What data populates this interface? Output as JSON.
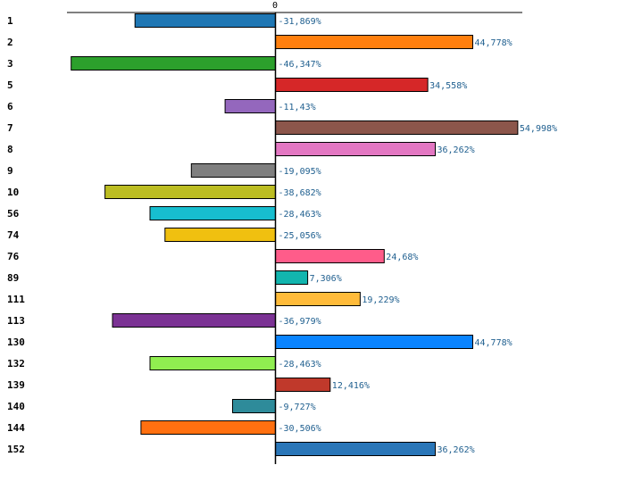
{
  "chart_data": {
    "type": "bar",
    "orientation": "horizontal",
    "title": "",
    "xlabel": "",
    "ylabel": "",
    "x_tick_labels": [
      "0"
    ],
    "categories": [
      "1",
      "2",
      "3",
      "5",
      "6",
      "7",
      "8",
      "9",
      "10",
      "56",
      "74",
      "76",
      "89",
      "111",
      "113",
      "130",
      "132",
      "139",
      "140",
      "144",
      "152"
    ],
    "values": [
      -31.869,
      44.778,
      -46.347,
      34.558,
      -11.43,
      54.998,
      36.262,
      -19.095,
      -38.682,
      -28.463,
      -25.056,
      24.68,
      7.306,
      19.229,
      -36.979,
      44.778,
      -28.463,
      12.416,
      -9.727,
      -30.506,
      36.262
    ],
    "labels": [
      "-31,869%",
      "44,778%",
      "-46,347%",
      "34,558%",
      "-11,43%",
      "54,998%",
      "36,262%",
      "-19,095%",
      "-38,682%",
      "-28,463%",
      "-25,056%",
      "24,68%",
      "7,306%",
      "19,229%",
      "-36,979%",
      "44,778%",
      "-28,463%",
      "12,416%",
      "-9,727%",
      "-30,506%",
      "36,262%"
    ],
    "colors": [
      "#1f77b4",
      "#ff7f0e",
      "#2ca02c",
      "#d62728",
      "#9467bd",
      "#8c564b",
      "#e377c2",
      "#7f7f7f",
      "#bcbd22",
      "#17becf",
      "#f0c010",
      "#ff5c8a",
      "#12b5ae",
      "#ffbb3a",
      "#7b3294",
      "#0a84ff",
      "#90ee50",
      "#c0392b",
      "#2e8b9a",
      "#ff7010",
      "#2a76b8"
    ],
    "xlim": [
      -47.5,
      56.5
    ],
    "legend": "none",
    "grid": false
  }
}
